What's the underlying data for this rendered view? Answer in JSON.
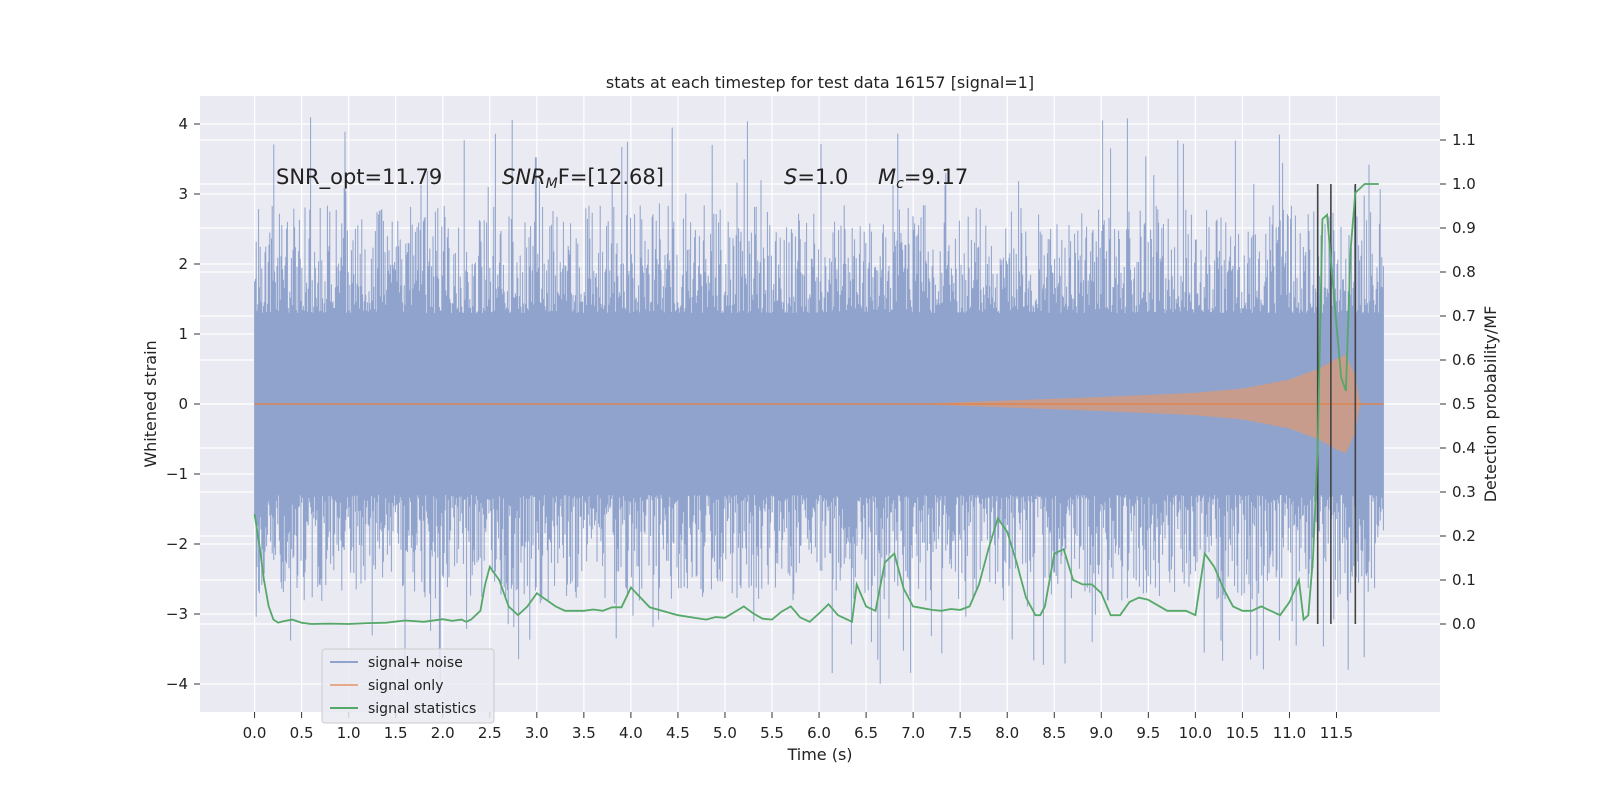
{
  "chart_data": {
    "type": "line",
    "title": "stats at each timestep for test data 16157 [signal=1]",
    "xlabel": "Time (s)",
    "ylabel": "Whitened strain",
    "ylabel_right": "Detection probability/MF",
    "xlim": [
      -0.58,
      12.6
    ],
    "ylim": [
      -4.4,
      4.4
    ],
    "ylim_right": [
      -0.2,
      1.2
    ],
    "x_ticks": [
      "0.0",
      "0.5",
      "1.0",
      "1.5",
      "2.0",
      "2.5",
      "3.0",
      "3.5",
      "4.0",
      "4.5",
      "5.0",
      "5.5",
      "6.0",
      "6.5",
      "7.0",
      "7.5",
      "8.0",
      "8.5",
      "9.0",
      "9.5",
      "10.0",
      "10.5",
      "11.0",
      "11.5"
    ],
    "y_ticks": [
      "4",
      "3",
      "2",
      "1",
      "0",
      "−1",
      "−2",
      "−3",
      "−4"
    ],
    "y_ticks_right": [
      "1.1",
      "1.0",
      "0.9",
      "0.8",
      "0.7",
      "0.6",
      "0.5",
      "0.4",
      "0.3",
      "0.2",
      "0.1",
      "0.0"
    ],
    "grid": true,
    "legend_position": "lower-left",
    "annotations": {
      "snr_opt": "SNR_opt=11.79",
      "snr_mf_sym": "SNR",
      "snr_mf_sub": "M",
      "snr_mf_rest": "F=[12.68]",
      "s_sym": "S",
      "s_val": "=1.0",
      "mc_sym": "M",
      "mc_sub": "c",
      "mc_val": "=9.17"
    },
    "vlines_x": [
      11.3,
      11.44,
      11.7
    ],
    "colors": {
      "noise": "#8fa3cc",
      "signal": "#dd8452",
      "stats": "#55a868",
      "vline": "#444444",
      "background": "#eaeaf2",
      "grid": "#ffffff"
    },
    "series": [
      {
        "name": "signal+ noise",
        "axis": "left",
        "kind": "noise",
        "t_range": [
          0,
          12.0
        ],
        "core_amplitude": 1.3,
        "spike_max": [
          4.1,
          -4.05
        ]
      },
      {
        "name": "signal only",
        "axis": "left",
        "kind": "chirp",
        "t_range": [
          0,
          12.0
        ],
        "envelope": [
          [
            7.0,
            0.0
          ],
          [
            8.0,
            0.05
          ],
          [
            9.0,
            0.1
          ],
          [
            10.0,
            0.16
          ],
          [
            10.5,
            0.22
          ],
          [
            11.0,
            0.35
          ],
          [
            11.3,
            0.5
          ],
          [
            11.5,
            0.65
          ],
          [
            11.6,
            0.7
          ],
          [
            11.7,
            0.4
          ],
          [
            11.75,
            0.0
          ]
        ]
      },
      {
        "name": "signal statistics",
        "axis": "right",
        "kind": "line",
        "x": [
          0.0,
          0.05,
          0.1,
          0.15,
          0.2,
          0.25,
          0.3,
          0.4,
          0.5,
          0.6,
          0.8,
          1.0,
          1.2,
          1.4,
          1.6,
          1.8,
          2.0,
          2.1,
          2.2,
          2.25,
          2.3,
          2.4,
          2.45,
          2.5,
          2.6,
          2.7,
          2.8,
          2.9,
          3.0,
          3.2,
          3.3,
          3.5,
          3.6,
          3.7,
          3.8,
          3.9,
          4.0,
          4.2,
          4.5,
          4.8,
          4.9,
          5.0,
          5.2,
          5.3,
          5.4,
          5.5,
          5.6,
          5.7,
          5.8,
          5.9,
          6.0,
          6.1,
          6.2,
          6.3,
          6.35,
          6.4,
          6.5,
          6.6,
          6.7,
          6.8,
          6.9,
          7.0,
          7.2,
          7.3,
          7.4,
          7.5,
          7.6,
          7.7,
          7.8,
          7.9,
          8.0,
          8.1,
          8.2,
          8.3,
          8.35,
          8.4,
          8.5,
          8.6,
          8.7,
          8.8,
          8.9,
          9.0,
          9.1,
          9.2,
          9.3,
          9.4,
          9.5,
          9.7,
          9.8,
          9.9,
          10.0,
          10.1,
          10.2,
          10.3,
          10.4,
          10.5,
          10.6,
          10.7,
          10.8,
          10.9,
          11.0,
          11.1,
          11.15,
          11.2,
          11.25,
          11.3,
          11.35,
          11.4,
          11.45,
          11.5,
          11.55,
          11.6,
          11.65,
          11.7,
          11.75,
          11.8,
          11.85,
          11.9,
          11.95
        ],
        "y": [
          0.25,
          0.18,
          0.1,
          0.04,
          0.01,
          0.003,
          0.006,
          0.01,
          0.003,
          0.0,
          0.001,
          0.0,
          0.002,
          0.003,
          0.008,
          0.005,
          0.011,
          0.007,
          0.01,
          0.005,
          0.01,
          0.03,
          0.09,
          0.13,
          0.1,
          0.04,
          0.02,
          0.04,
          0.07,
          0.04,
          0.03,
          0.03,
          0.033,
          0.03,
          0.038,
          0.038,
          0.083,
          0.038,
          0.02,
          0.01,
          0.016,
          0.014,
          0.04,
          0.024,
          0.012,
          0.01,
          0.028,
          0.04,
          0.015,
          0.005,
          0.024,
          0.045,
          0.02,
          0.01,
          0.005,
          0.09,
          0.04,
          0.03,
          0.14,
          0.16,
          0.08,
          0.04,
          0.032,
          0.03,
          0.034,
          0.032,
          0.04,
          0.09,
          0.17,
          0.24,
          0.21,
          0.14,
          0.06,
          0.02,
          0.02,
          0.04,
          0.16,
          0.17,
          0.1,
          0.09,
          0.09,
          0.07,
          0.02,
          0.02,
          0.05,
          0.06,
          0.055,
          0.03,
          0.03,
          0.03,
          0.02,
          0.16,
          0.13,
          0.08,
          0.04,
          0.03,
          0.03,
          0.04,
          0.03,
          0.02,
          0.05,
          0.1,
          0.01,
          0.02,
          0.15,
          0.4,
          0.92,
          0.93,
          0.8,
          0.68,
          0.56,
          0.53,
          0.85,
          0.98,
          0.99,
          1.0,
          1.0,
          1.0,
          1.0
        ]
      }
    ]
  }
}
